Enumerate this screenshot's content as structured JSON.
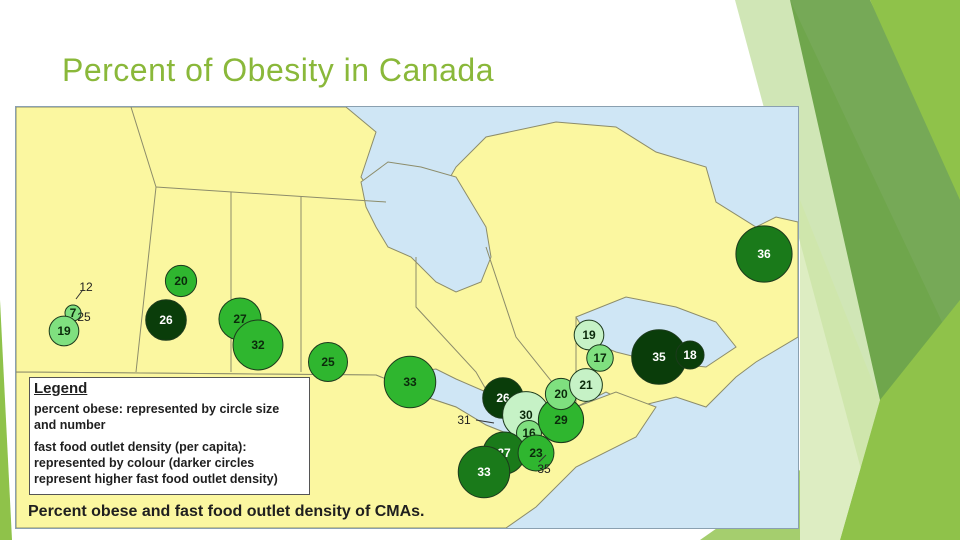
{
  "slide": {
    "title": "Percent of Obesity in Canada"
  },
  "colors": {
    "title": "#8ab83a",
    "water": "#cfe6f5",
    "land": "#fbf7a0",
    "dark_green": "#0a3d0a",
    "medium_green": "#1a7a1a",
    "green": "#2fb62f",
    "light_green": "#7fe07f",
    "pale_green": "#c6f2c6"
  },
  "map": {
    "legend": {
      "title": "Legend",
      "size_text_1": "percent obese: represented by circle size",
      "size_text_2": "and number",
      "colour_text_1": "fast food outlet density (per capita):",
      "colour_text_2": "represented by colour (darker circles",
      "colour_text_3": "represent higher fast food outlet density)"
    },
    "caption": "Percent obese and fast food outlet density of CMAs.",
    "cmas": [
      {
        "value": "12",
        "density": "light"
      },
      {
        "value": "7",
        "density": "light"
      },
      {
        "value": "19",
        "density": "light"
      },
      {
        "value": "25",
        "density": "medium"
      },
      {
        "value": "20",
        "density": "medium"
      },
      {
        "value": "26",
        "density": "dark"
      },
      {
        "value": "27",
        "density": "medium"
      },
      {
        "value": "32",
        "density": "medium"
      },
      {
        "value": "25",
        "density": "medium"
      },
      {
        "value": "33",
        "density": "medium"
      },
      {
        "value": "26",
        "density": "dark"
      },
      {
        "value": "31",
        "density": "dark"
      },
      {
        "value": "30",
        "density": "pale"
      },
      {
        "value": "16",
        "density": "light"
      },
      {
        "value": "27",
        "density": "medium-dark"
      },
      {
        "value": "23",
        "density": "medium"
      },
      {
        "value": "33",
        "density": "medium-dark"
      },
      {
        "value": "35",
        "density": "dark"
      },
      {
        "value": "29",
        "density": "medium"
      },
      {
        "value": "20",
        "density": "light"
      },
      {
        "value": "21",
        "density": "pale"
      },
      {
        "value": "19",
        "density": "pale"
      },
      {
        "value": "17",
        "density": "light"
      },
      {
        "value": "35",
        "density": "dark"
      },
      {
        "value": "18",
        "density": "dark"
      },
      {
        "value": "36",
        "density": "medium-dark"
      }
    ]
  }
}
